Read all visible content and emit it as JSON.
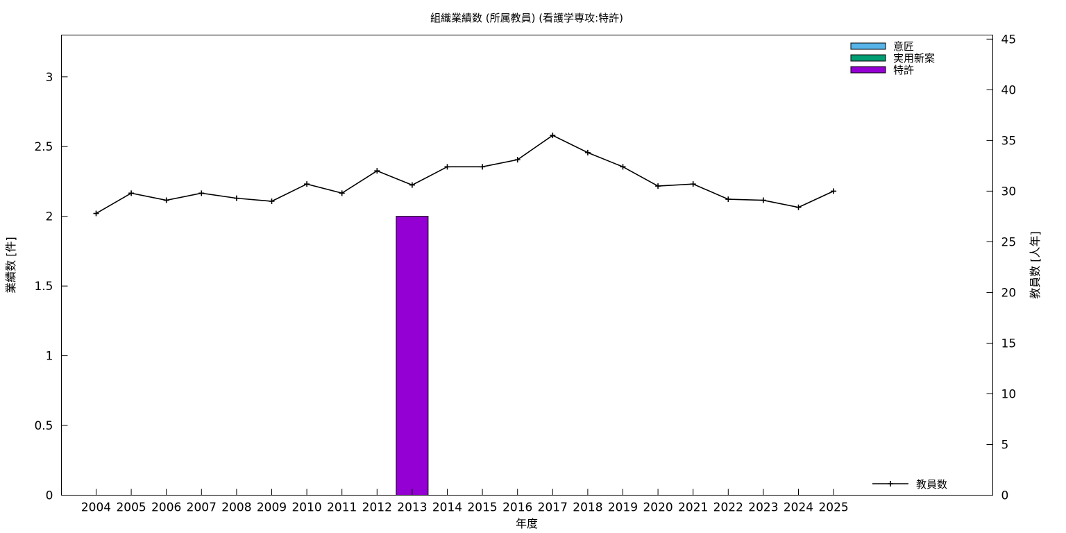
{
  "chart_data": {
    "type": "bar",
    "title": "組織業績数 (所属教員) (看護学専攻:特許)",
    "xlabel": "年度",
    "ylabel": "業績数 [件]",
    "y2label": "教員数 [人年]",
    "categories": [
      "2004",
      "2005",
      "2006",
      "2007",
      "2008",
      "2009",
      "2010",
      "2011",
      "2012",
      "2013",
      "2014",
      "2015",
      "2016",
      "2017",
      "2018",
      "2019",
      "2020",
      "2021",
      "2022",
      "2023",
      "2024",
      "2025"
    ],
    "ylim": [
      0,
      3.3
    ],
    "yticks": [
      "0",
      "0.5",
      "1",
      "1.5",
      "2",
      "2.5",
      "3"
    ],
    "y2lim": [
      0,
      45.4
    ],
    "y2ticks": [
      "0",
      "5",
      "10",
      "15",
      "20",
      "25",
      "30",
      "35",
      "40",
      "45"
    ],
    "grid": false,
    "legend_position": "top-right",
    "series": [
      {
        "name": "意匠",
        "kind": "bar",
        "axis": "left",
        "color": "#56b4e9",
        "values": [
          0,
          0,
          0,
          0,
          0,
          0,
          0,
          0,
          0,
          0,
          0,
          0,
          0,
          0,
          0,
          0,
          0,
          0,
          0,
          0,
          0,
          0
        ]
      },
      {
        "name": "実用新案",
        "kind": "bar",
        "axis": "left",
        "color": "#009e73",
        "values": [
          0,
          0,
          0,
          0,
          0,
          0,
          0,
          0,
          0,
          0,
          0,
          0,
          0,
          0,
          0,
          0,
          0,
          0,
          0,
          0,
          0,
          0
        ]
      },
      {
        "name": "特許",
        "kind": "bar",
        "axis": "left",
        "color": "#9400d3",
        "values": [
          0,
          0,
          0,
          0,
          0,
          0,
          0,
          0,
          0,
          2,
          0,
          0,
          0,
          0,
          0,
          0,
          0,
          0,
          0,
          0,
          0,
          0
        ]
      },
      {
        "name": "教員数",
        "kind": "line",
        "axis": "right",
        "color": "#000000",
        "values": [
          27.8,
          29.8,
          29.1,
          29.8,
          29.3,
          29.0,
          30.7,
          29.8,
          32.0,
          30.6,
          32.4,
          32.4,
          33.1,
          35.5,
          33.8,
          32.4,
          30.5,
          30.7,
          29.2,
          29.1,
          28.4,
          30.0
        ]
      }
    ]
  }
}
